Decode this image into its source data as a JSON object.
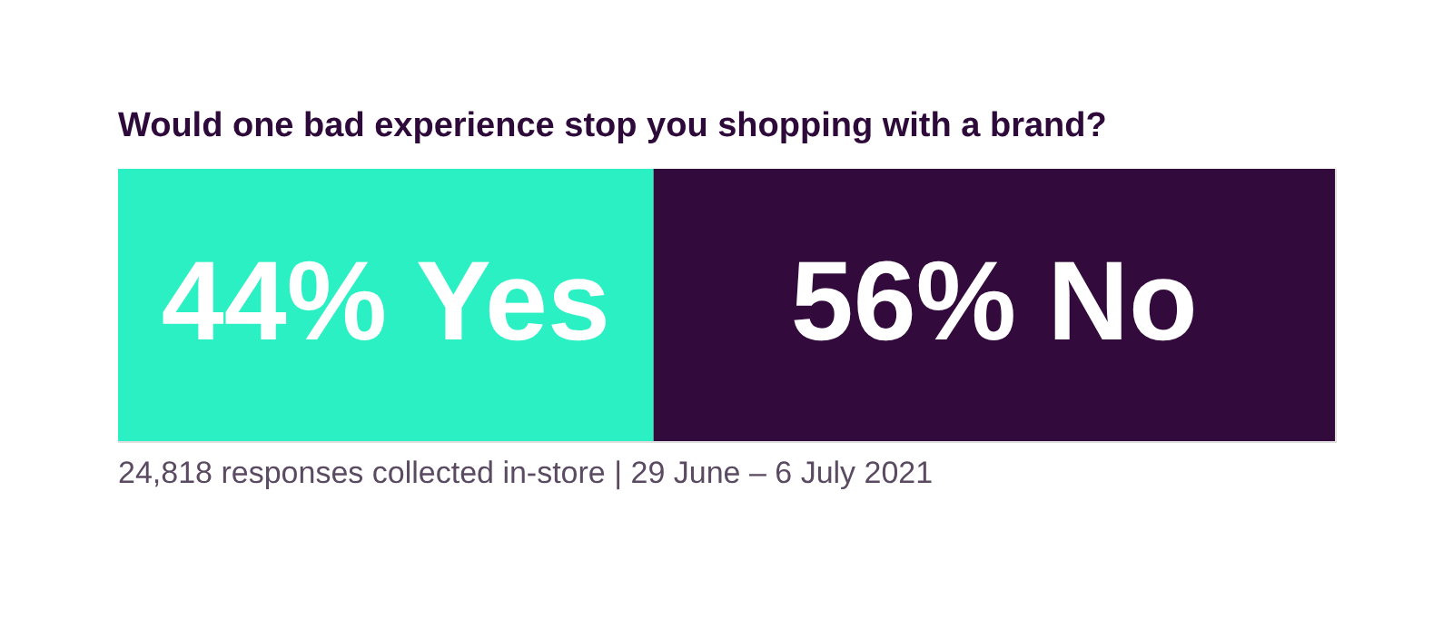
{
  "chart_data": {
    "type": "bar",
    "orientation": "horizontal",
    "stacked": true,
    "title": "Would one bad experience stop you shopping with a brand?",
    "categories": [
      null
    ],
    "series": [
      {
        "color": "#2af0c4",
        "values": [
          44
        ],
        "value_labels": [
          "44% Yes"
        ]
      },
      {
        "color": "#330a3c",
        "values": [
          56
        ],
        "value_labels": [
          "56% No"
        ]
      }
    ],
    "annotations": [
      "24,818 responses collected in-store  |  29 June – 6 July 2021"
    ]
  }
}
